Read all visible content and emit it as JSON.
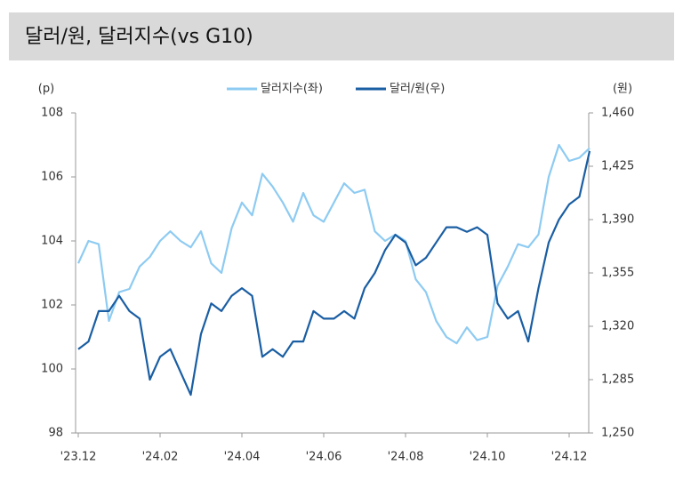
{
  "chart_data": {
    "type": "line",
    "title": "달러/원, 달러지수(vs G10)",
    "y_label": "(p)",
    "y2_label": "(원)",
    "categories": [
      "'23.12",
      null,
      null,
      null,
      null,
      null,
      null,
      null,
      "'24.02",
      null,
      null,
      null,
      null,
      null,
      null,
      null,
      "'24.04",
      null,
      null,
      null,
      null,
      null,
      null,
      null,
      "'24.06",
      null,
      null,
      null,
      null,
      null,
      null,
      null,
      "'24.08",
      null,
      null,
      null,
      null,
      null,
      null,
      null,
      "'24.10",
      null,
      null,
      null,
      null,
      null,
      null,
      null,
      "'24.12",
      null,
      null
    ],
    "series": [
      {
        "name": "달러지수(좌)",
        "color": "#8ecbf2",
        "axis": "y",
        "values": [
          103.3,
          104.0,
          103.9,
          101.5,
          102.4,
          102.5,
          103.2,
          103.5,
          104.0,
          104.3,
          104.0,
          103.8,
          104.3,
          103.3,
          103.0,
          104.4,
          105.2,
          104.8,
          106.1,
          105.7,
          105.2,
          104.6,
          105.5,
          104.8,
          104.6,
          105.2,
          105.8,
          105.5,
          105.6,
          104.3,
          104.0,
          104.2,
          104.0,
          102.8,
          102.4,
          101.5,
          101.0,
          100.8,
          101.3,
          100.9,
          101.0,
          102.6,
          103.2,
          103.9,
          103.8,
          104.2,
          106.0,
          107.0,
          106.5,
          106.6,
          106.9
        ]
      },
      {
        "name": "달러/원(우)",
        "color": "#1a5ea3",
        "axis": "y2",
        "values": [
          1305,
          1310,
          1330,
          1330,
          1340,
          1330,
          1325,
          1285,
          1300,
          1305,
          1290,
          1275,
          1315,
          1335,
          1330,
          1340,
          1345,
          1340,
          1300,
          1305,
          1300,
          1310,
          1310,
          1330,
          1325,
          1325,
          1330,
          1325,
          1345,
          1355,
          1370,
          1380,
          1375,
          1360,
          1365,
          1375,
          1385,
          1385,
          1382,
          1385,
          1380,
          1335,
          1325,
          1330,
          1310,
          1345,
          1375,
          1390,
          1400,
          1405,
          1435
        ]
      }
    ],
    "ylim": [
      98,
      108
    ],
    "yticks": [
      98,
      100,
      102,
      104,
      106,
      108
    ],
    "y2lim": [
      1250,
      1460
    ],
    "y2ticks": [
      {
        "value": 1250,
        "label": "1,250"
      },
      {
        "value": 1285,
        "label": "1,285"
      },
      {
        "value": 1320,
        "label": "1,320"
      },
      {
        "value": 1355,
        "label": "1,355"
      },
      {
        "value": 1390,
        "label": "1,390"
      },
      {
        "value": 1425,
        "label": "1,425"
      },
      {
        "value": 1460,
        "label": "1,460"
      }
    ],
    "grid": false,
    "legend": "top"
  }
}
